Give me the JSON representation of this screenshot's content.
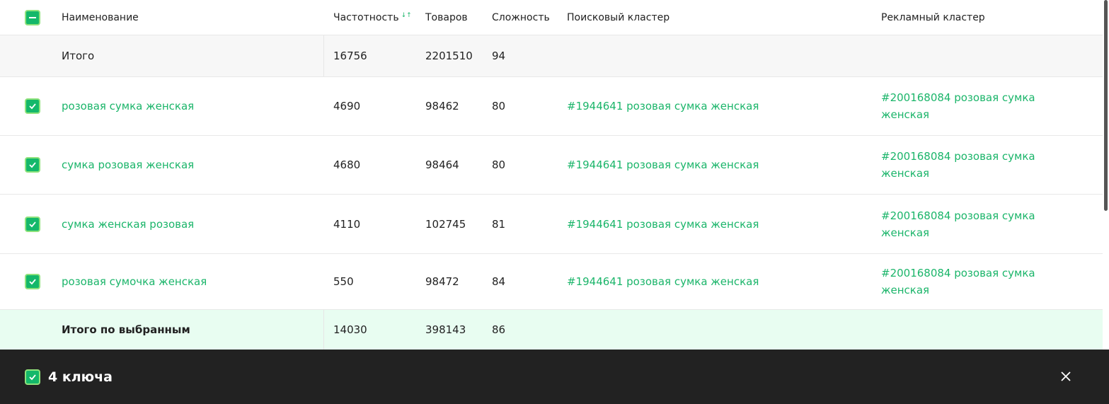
{
  "header": {
    "name": "Наименование",
    "frequency": "Частотность",
    "sort_icon": "sort-arrows-icon",
    "goods": "Товаров",
    "complexity": "Сложность",
    "search_cluster": "Поисковый кластер",
    "ad_cluster": "Рекламный кластер"
  },
  "total": {
    "label": "Итого",
    "frequency": "16756",
    "goods": "2201510",
    "complexity": "94"
  },
  "rows": [
    {
      "name": "розовая сумка женская",
      "frequency": "4690",
      "goods": "98462",
      "complexity": "80",
      "search_cluster": "#1944641 розовая сумка женская",
      "ad_cluster": "#200168084 розовая сумка женская"
    },
    {
      "name": "сумка розовая женская",
      "frequency": "4680",
      "goods": "98464",
      "complexity": "80",
      "search_cluster": "#1944641 розовая сумка женская",
      "ad_cluster": "#200168084 розовая сумка женская"
    },
    {
      "name": "сумка женская розовая",
      "frequency": "4110",
      "goods": "102745",
      "complexity": "81",
      "search_cluster": "#1944641 розовая сумка женская",
      "ad_cluster": "#200168084 розовая сумка женская"
    },
    {
      "name": "розовая сумочка женская",
      "frequency": "550",
      "goods": "98472",
      "complexity": "84",
      "search_cluster": "#1944641 розовая сумка женская",
      "ad_cluster": "#200168084 розовая сумка женская"
    }
  ],
  "selected_total": {
    "label": "Итого по выбранным",
    "frequency": "14030",
    "goods": "398143",
    "complexity": "86"
  },
  "selection_bar": {
    "label": "4 ключа"
  },
  "colors": {
    "accent": "#1bb56a",
    "bar": "#222222",
    "selected_bg": "#e8fdf1",
    "total_bg": "#f7f7f7"
  }
}
